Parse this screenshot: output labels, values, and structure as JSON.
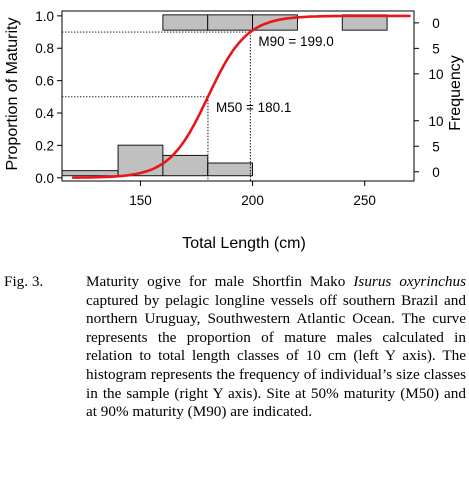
{
  "chart_data": {
    "type": "line",
    "xlabel": "Total Length (cm)",
    "ylabel": "Proportion of Maturity",
    "y2label": "Frequency",
    "xlim": [
      115,
      272
    ],
    "ylim": [
      -0.02,
      1.03
    ],
    "xticks": [
      150,
      200,
      250
    ],
    "xtick_labels": [
      "150",
      "200",
      "250"
    ],
    "yticks": [
      0.0,
      0.2,
      0.4,
      0.6,
      0.8,
      1.0
    ],
    "ytick_labels": [
      "0.0",
      "0.2",
      "0.4",
      "0.6",
      "0.8",
      "1.0"
    ],
    "y2_top_ticks": [
      {
        "label": "0",
        "value": 0
      },
      {
        "label": "5",
        "value": 5
      },
      {
        "label": "10",
        "value": 10
      }
    ],
    "y2_bottom_ticks": [
      {
        "label": "0",
        "value": 0
      },
      {
        "label": "5",
        "value": 5
      },
      {
        "label": "10",
        "value": 10
      }
    ],
    "series": [
      {
        "kind": "logistic-curve",
        "color": "#e8151b",
        "x_range": [
          120,
          270
        ],
        "m50": 180.1,
        "m90": 199.0
      }
    ],
    "histogram_immature": {
      "bin_width": 20,
      "bins": [
        {
          "x0": 115,
          "x1": 140,
          "count": 1
        },
        {
          "x0": 140,
          "x1": 160,
          "count": 6
        },
        {
          "x0": 160,
          "x1": 180,
          "count": 4
        },
        {
          "x0": 180,
          "x1": 200,
          "count": 2.5
        }
      ]
    },
    "histogram_mature": {
      "bins": [
        {
          "x0": 160,
          "x1": 180,
          "count": 3
        },
        {
          "x0": 180,
          "x1": 200,
          "count": 3
        },
        {
          "x0": 200,
          "x1": 220,
          "count": 3
        },
        {
          "x0": 240,
          "x1": 260,
          "count": 3
        }
      ]
    },
    "bar_fill": "#c0c0c0",
    "annotations": [
      {
        "text": "M90 = 199.0",
        "x": 199.0,
        "y": 0.9
      },
      {
        "text": "M50 = 180.1",
        "x": 180.1,
        "y": 0.5
      }
    ],
    "grid": false,
    "legend": "none"
  },
  "caption": {
    "label": "Fig. 3.",
    "text_before_italic": "Maturity ogive for male Shortfin Mako ",
    "italic": "Isurus oxyrinchus",
    "text_after_italic": " captured by pelagic longline vessels off southern Brazil and northern Uruguay, Southwestern Atlantic Ocean. The curve represents the proportion of mature males calculated in relation to total length classes of 10 cm (left Y axis). The histogram represents the frequency of individual’s size classes in the sample (right Y axis). Site at 50% maturity (M50) and at 90% maturity (M90) are indicated."
  }
}
